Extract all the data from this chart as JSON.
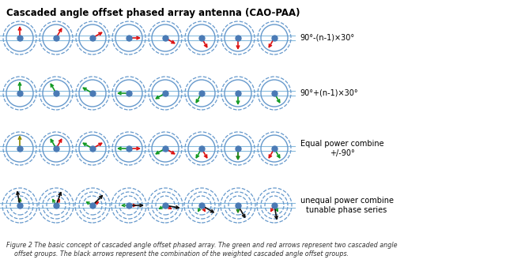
{
  "title": "Cascaded angle offset phased array antenna (CAO-PAA)",
  "caption_line1": "Figure 2 The basic concept of cascaded angle offset phased array. The green and red arrows represent two cascaded angle",
  "caption_line2": "    offset groups. The black arrows represent the combination of the weighted cascaded angle offset groups.",
  "row_labels": [
    "90°-(n-1)×30°",
    "90°+(n-1)×30°",
    "Equal power combine\n+/-90°",
    "unequal power combine\ntunable phase series"
  ],
  "n_antennas": 8,
  "dot_color": "#4a7ab5",
  "circle_color": "#6699cc",
  "line_color": "#88bbdd",
  "red": "#dd1111",
  "green": "#119922",
  "black": "#111111",
  "olive": "#888800",
  "fig_width": 6.4,
  "fig_height": 3.38
}
